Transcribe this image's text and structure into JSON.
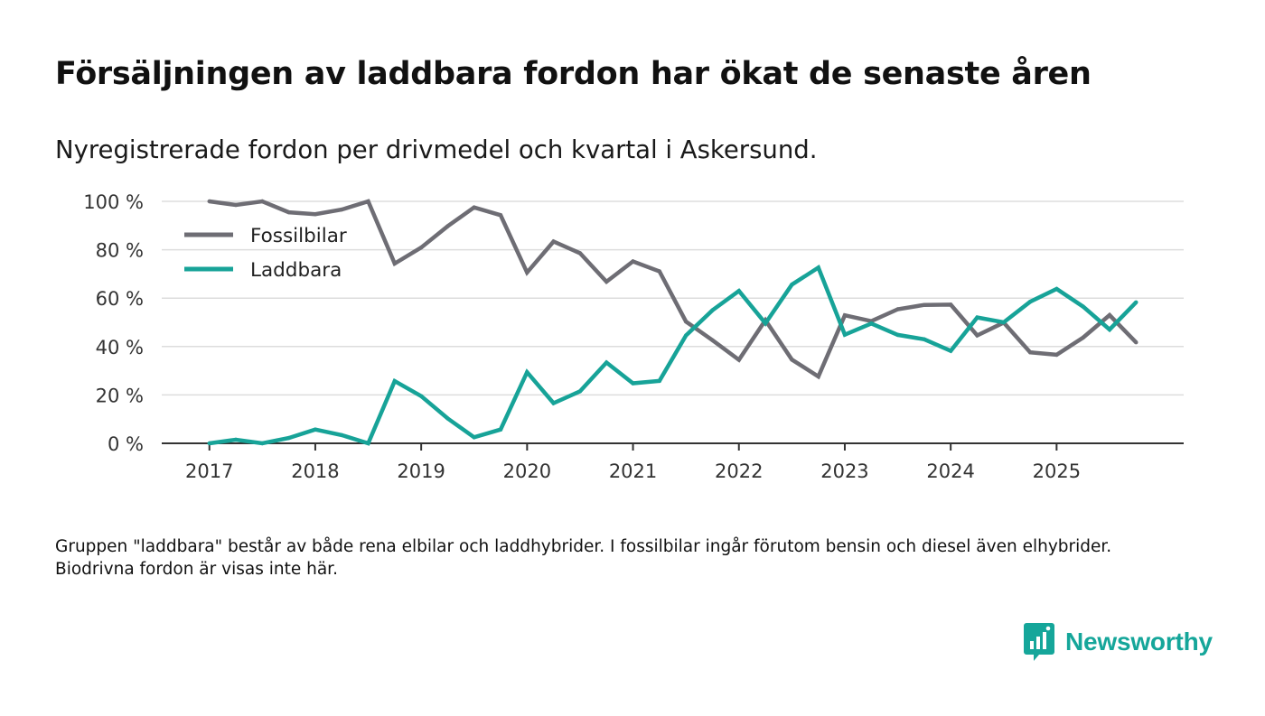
{
  "header": {
    "title": "Försäljningen av laddbara fordon har ökat de senaste åren",
    "subtitle": "Nyregistrerade fordon per drivmedel och kvartal i Askersund."
  },
  "footnote": "Gruppen \"laddbara\" består av både rena elbilar och laddhybrider. I fossilbilar ingår förutom bensin och diesel även elhybrider. Biodrivna fordon är visas inte här.",
  "brand": {
    "name": "Newsworthy",
    "icon": "newsworthy-logo-icon"
  },
  "colors": {
    "fossil": "#6e6d74",
    "laddbara": "#17a398",
    "grid": "#dddddd",
    "axis": "#333333"
  },
  "chart_data": {
    "type": "line",
    "title": "Försäljningen av laddbara fordon har ökat de senaste åren",
    "subtitle": "Nyregistrerade fordon per drivmedel och kvartal i Askersund.",
    "xlabel": "",
    "ylabel": "",
    "x": [
      2017.0,
      2017.25,
      2017.5,
      2017.75,
      2018.0,
      2018.25,
      2018.5,
      2018.75,
      2019.0,
      2019.25,
      2019.5,
      2019.75,
      2020.0,
      2020.25,
      2020.5,
      2020.75,
      2021.0,
      2021.25,
      2021.5,
      2021.75,
      2022.0,
      2022.25,
      2022.5,
      2022.75,
      2023.0,
      2023.25,
      2023.5,
      2023.75,
      2024.0,
      2024.25,
      2024.5,
      2024.75,
      2025.0,
      2025.25,
      2025.5,
      2025.75
    ],
    "xticks": [
      2017,
      2018,
      2019,
      2020,
      2021,
      2022,
      2023,
      2024,
      2025
    ],
    "xtick_labels": [
      "2017",
      "2018",
      "2019",
      "2020",
      "2021",
      "2022",
      "2023",
      "2024",
      "2025"
    ],
    "xlim": [
      2016.55,
      2026.2
    ],
    "yticks": [
      0,
      20,
      40,
      60,
      80,
      100
    ],
    "ytick_labels": [
      "0 %",
      "20 %",
      "40 %",
      "60 %",
      "80 %",
      "100 %"
    ],
    "ylim": [
      0,
      100
    ],
    "grid": true,
    "legend": "top-left",
    "series": [
      {
        "name": "Fossilbilar",
        "color": "#6e6d74",
        "values": [
          100,
          98.5,
          100,
          95.5,
          94.7,
          96.6,
          100,
          74.3,
          80.9,
          89.7,
          97.5,
          94.3,
          70.6,
          83.4,
          78.6,
          66.8,
          75.2,
          71.1,
          50.3,
          42.6,
          34.5,
          50.9,
          34.6,
          27.6,
          52.9,
          50.5,
          55.4,
          57.2,
          57.3,
          44.6,
          49.9,
          37.6,
          36.6,
          43.7,
          53.0,
          41.7
        ]
      },
      {
        "name": "Laddbara",
        "color": "#17a398",
        "values": [
          0,
          1.5,
          0,
          2.2,
          5.7,
          3.4,
          0,
          25.7,
          19.5,
          10.3,
          2.5,
          5.7,
          29.4,
          16.6,
          21.5,
          33.4,
          24.8,
          25.8,
          44.6,
          55.0,
          63.0,
          49.6,
          65.6,
          72.6,
          44.9,
          49.5,
          44.8,
          43.0,
          38.2,
          52.0,
          50.0,
          58.5,
          63.8,
          56.5,
          47.0,
          58.3
        ]
      }
    ]
  }
}
